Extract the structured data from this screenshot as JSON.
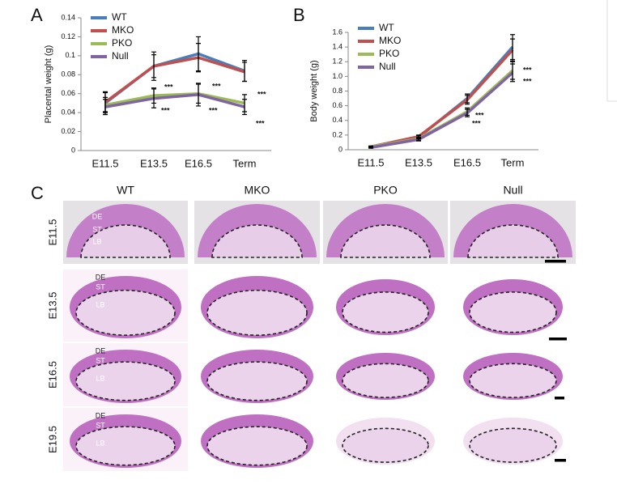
{
  "panels": [
    "A",
    "B",
    "C"
  ],
  "chart_data": [
    {
      "type": "line",
      "ylabel": "Placental weight (g)",
      "categories": [
        "E11.5",
        "E13.5",
        "E16.5",
        "Term"
      ],
      "ylim": [
        0,
        0.14
      ],
      "yticks": [
        0,
        0.02,
        0.04,
        0.06,
        0.08,
        0.1,
        0.12,
        0.14
      ],
      "series": [
        {
          "name": "WT",
          "color": "#4a7ebb",
          "values": [
            0.05,
            0.089,
            0.102,
            0.084
          ],
          "errors": [
            0.012,
            0.015,
            0.018,
            0.011
          ]
        },
        {
          "name": "MKO",
          "color": "#c0504d",
          "values": [
            0.051,
            0.089,
            0.098,
            0.083
          ],
          "errors": [
            0.01,
            0.012,
            0.015,
            0.01
          ]
        },
        {
          "name": "PKO",
          "color": "#9bbb59",
          "values": [
            0.048,
            0.058,
            0.06,
            0.05
          ],
          "errors": [
            0.008,
            0.008,
            0.01,
            0.009
          ]
        },
        {
          "name": "Null",
          "color": "#8064a2",
          "values": [
            0.046,
            0.055,
            0.059,
            0.046
          ],
          "errors": [
            0.008,
            0.01,
            0.012,
            0.008
          ]
        }
      ],
      "annotations": [
        "***",
        "***",
        "***",
        "***",
        "***",
        "***"
      ],
      "legend": "upper left"
    },
    {
      "type": "line",
      "ylabel": "Body weight (g)",
      "categories": [
        "E11.5",
        "E13.5",
        "E16.5",
        "Term"
      ],
      "ylim": [
        0,
        1.6
      ],
      "yticks": [
        0,
        0.2,
        0.4,
        0.6,
        0.8,
        {
          "value": 1,
          "label": "1.0"
        },
        1.2,
        1.4,
        1.6
      ],
      "series": [
        {
          "name": "WT",
          "color": "#4a7ebb",
          "values": [
            0.04,
            0.17,
            0.7,
            1.4
          ],
          "errors": [
            0.01,
            0.02,
            0.06,
            0.17
          ]
        },
        {
          "name": "MKO",
          "color": "#c0504d",
          "values": [
            0.04,
            0.18,
            0.68,
            1.36
          ],
          "errors": [
            0.01,
            0.02,
            0.06,
            0.15
          ]
        },
        {
          "name": "PKO",
          "color": "#9bbb59",
          "values": [
            0.04,
            0.15,
            0.52,
            1.08
          ],
          "errors": [
            0.01,
            0.02,
            0.05,
            0.12
          ]
        },
        {
          "name": "Null",
          "color": "#8064a2",
          "values": [
            0.03,
            0.14,
            0.5,
            1.05
          ],
          "errors": [
            0.01,
            0.02,
            0.05,
            0.12
          ]
        }
      ],
      "annotations": [
        "***",
        "***",
        "***",
        "***"
      ],
      "legend": "upper left"
    }
  ],
  "histology": {
    "columns": [
      "WT",
      "MKO",
      "PKO",
      "Null"
    ],
    "rows": [
      "E11.5",
      "E13.5",
      "E16.5",
      "E19.5"
    ],
    "regions": [
      "DE",
      "ST",
      "LB"
    ]
  }
}
